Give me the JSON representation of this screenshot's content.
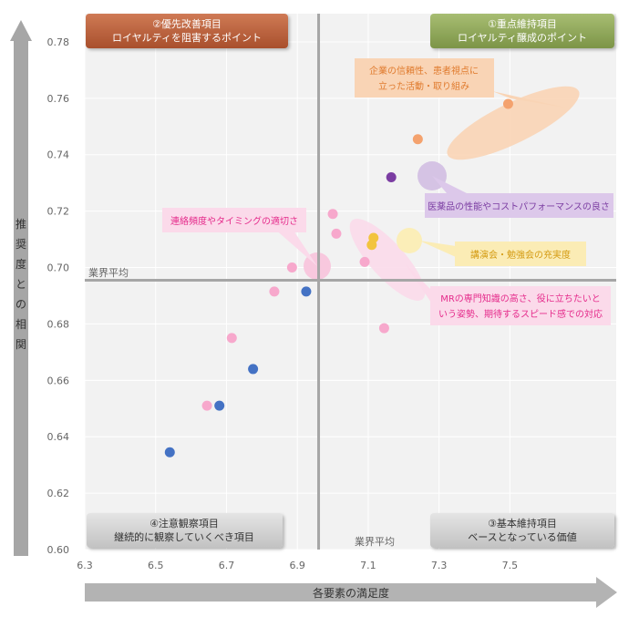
{
  "chart_data": {
    "type": "scatter",
    "xlabel": "各要素の満足度",
    "ylabel": "推奨度との相関",
    "xlim": [
      6.3,
      7.8
    ],
    "ylim": [
      0.6,
      0.79
    ],
    "x_ticks": [
      "6.3",
      "6.5",
      "6.7",
      "6.9",
      "7.1",
      "7.3",
      "7.5"
    ],
    "y_ticks": [
      "0.60",
      "0.62",
      "0.64",
      "0.66",
      "0.68",
      "0.70",
      "0.72",
      "0.74",
      "0.76",
      "0.78"
    ],
    "x_average": 6.96,
    "y_average": 0.6955,
    "average_label_x": "業界平均",
    "average_label_y": "業界平均",
    "quadrants": [
      {
        "title": "①重点維持項目",
        "subtitle": "ロイヤルティ醸成のポイント",
        "color": "#8ba25a"
      },
      {
        "title": "②優先改善項目",
        "subtitle": "ロイヤルティを阻害するポイント",
        "color": "#b9603e"
      },
      {
        "title": "③基本維持項目",
        "subtitle": "ベースとなっている価値",
        "color": "#c9c9c9"
      },
      {
        "title": "④注意観察項目",
        "subtitle": "継続的に観察していくべき項目",
        "color": "#c9c9c9"
      }
    ],
    "series": [
      {
        "color": "#f4a26e",
        "points": [
          [
            7.24,
            0.7455
          ],
          [
            7.495,
            0.758
          ]
        ]
      },
      {
        "color": "#7b3da2",
        "points": [
          [
            7.165,
            0.732
          ]
        ]
      },
      {
        "color": "#f2c43e",
        "points": [
          [
            7.115,
            0.7105
          ],
          [
            7.11,
            0.708
          ]
        ]
      },
      {
        "color": "#f7a8cc",
        "points": [
          [
            7.0,
            0.719
          ],
          [
            7.01,
            0.712
          ],
          [
            7.09,
            0.702
          ],
          [
            6.885,
            0.7
          ],
          [
            6.835,
            0.6915
          ],
          [
            7.145,
            0.6785
          ],
          [
            6.715,
            0.675
          ],
          [
            6.645,
            0.651
          ]
        ]
      },
      {
        "color": "#4472c4",
        "points": [
          [
            6.925,
            0.6915
          ],
          [
            6.775,
            0.664
          ],
          [
            6.68,
            0.651
          ],
          [
            6.54,
            0.6345
          ]
        ]
      }
    ],
    "annotations": [
      {
        "lines": [
          "企業の信頼性、患者視点に",
          "立った活動・取り組み"
        ],
        "color": "#e07b2e",
        "fill": "#f9d4b5"
      },
      {
        "lines": [
          "医薬品の性能やコストパフォーマンスの良さ"
        ],
        "color": "#7b3da2",
        "fill": "#dcc8ea"
      },
      {
        "lines": [
          "講演会・勉強会の充実度"
        ],
        "color": "#d49b12",
        "fill": "#fbecb5"
      },
      {
        "lines": [
          "連絡頻度やタイミングの適切さ"
        ],
        "color": "#e52b8b",
        "fill": "#fbdaea"
      },
      {
        "lines": [
          "MRの専門知識の高さ、役に立ちたいと",
          "いう姿勢、期待するスピード感での対応"
        ],
        "color": "#e52b8b",
        "fill": "#fbdaea"
      }
    ]
  }
}
